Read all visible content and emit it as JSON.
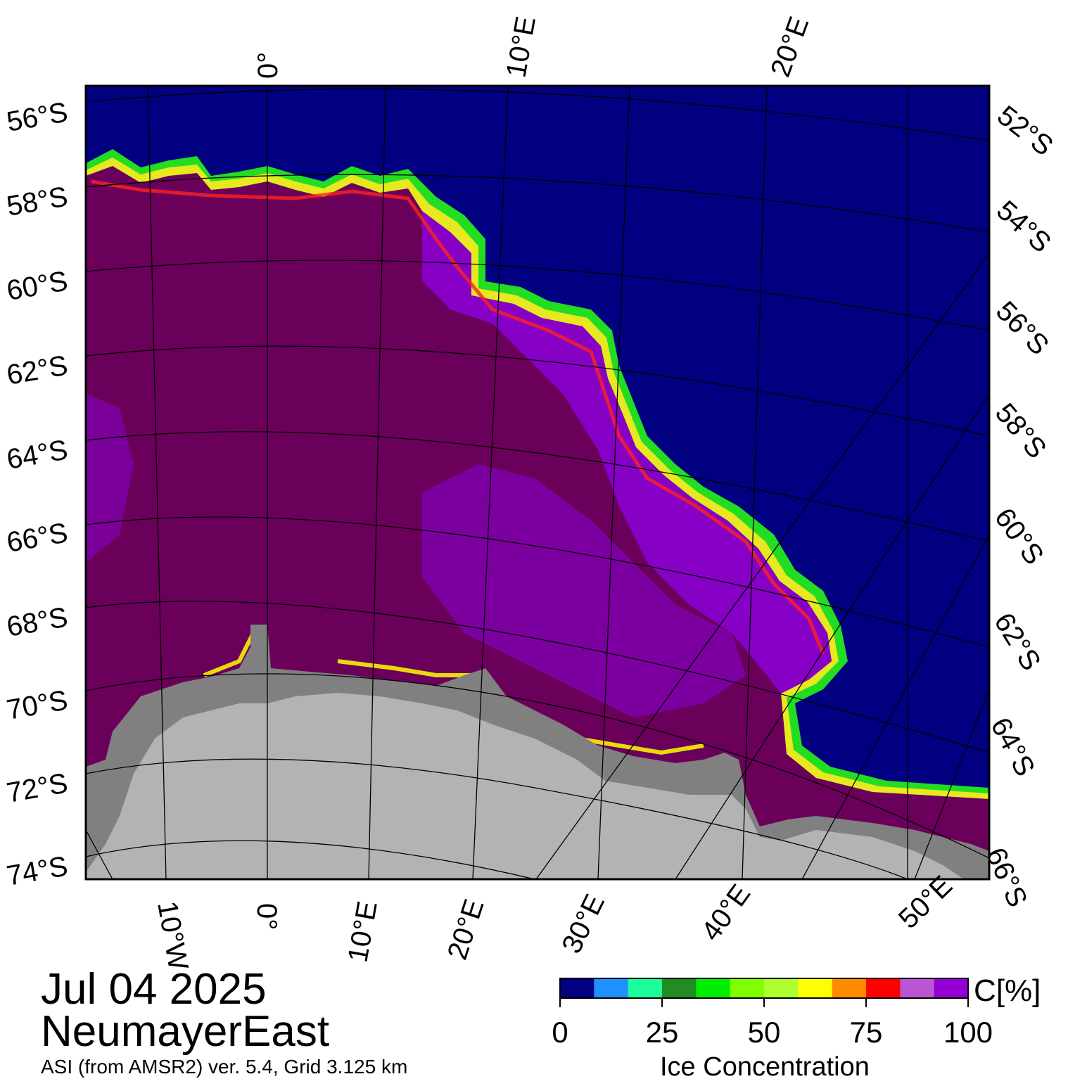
{
  "map": {
    "date": "Jul 04 2025",
    "region": "NeumayerEast",
    "source": "ASI (from AMSR2) ver. 5.4,  Grid 3.125 km",
    "colors": {
      "ocean": "#000080",
      "ice_full": "#6b005b",
      "ice_high": "#8b00d8",
      "land_ice": "#b3b3b3",
      "ice_shelf": "#808080",
      "edge_red": "#ff0000",
      "edge_yellow": "#ffff00",
      "edge_green": "#00e000"
    },
    "top_lon_labels": [
      "0°",
      "10°E",
      "20°E"
    ],
    "bottom_lon_labels": [
      "10°W",
      "0°",
      "10°E",
      "20°E",
      "30°E",
      "40°E",
      "50°E"
    ],
    "left_lat_labels": [
      "56°S",
      "58°S",
      "60°S",
      "62°S",
      "64°S",
      "66°S",
      "68°S",
      "70°S",
      "72°S",
      "74°S"
    ],
    "right_lat_labels": [
      "52°S",
      "54°S",
      "56°S",
      "58°S",
      "60°S",
      "62°S",
      "64°S",
      "66°S"
    ]
  },
  "colorbar": {
    "unit": "C[%]",
    "title": "Ice Concentration",
    "ticks": [
      "0",
      "25",
      "50",
      "75",
      "100"
    ],
    "colors": [
      "#000080",
      "#1e90ff",
      "#1aff9c",
      "#228b22",
      "#00ee00",
      "#7fff00",
      "#adff2f",
      "#ffff00",
      "#ff8c00",
      "#ff0000",
      "#ba55d3",
      "#9400d3"
    ]
  }
}
